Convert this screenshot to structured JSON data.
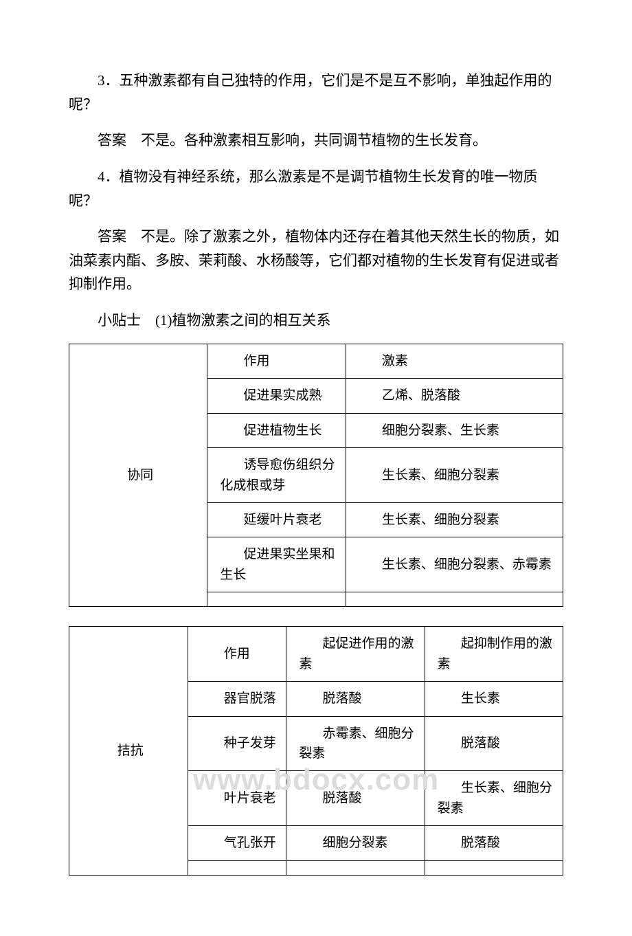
{
  "watermark": "www.bdocx.com",
  "q3": {
    "question": "3．五种激素都有自己独特的作用，它们是不是互不影响，单独起作用的呢？",
    "answer": "答案　不是。各种激素相互影响，共同调节植物的生长发育。"
  },
  "q4": {
    "question": "4．植物没有神经系统，那么激素是不是调节植物生长发育的唯一物质呢？",
    "answer": "答案　不是。除了激素之外，植物体内还存在着其他天然生长的物质，如油菜素内酯、多胺、茉莉酸、水杨酸等，它们都对植物的生长发育有促进或者抑制作用。"
  },
  "tip": "小贴士　(1)植物激素之间的相互关系",
  "table1": {
    "category": "协同",
    "head_action": "作用",
    "head_hormone": "激素",
    "rows": [
      {
        "action": "促进果实成熟",
        "hormone": "乙烯、脱落酸"
      },
      {
        "action": "促进植物生长",
        "hormone": "细胞分裂素、生长素"
      },
      {
        "action": "诱导愈伤组织分化成根或芽",
        "hormone": "生长素、细胞分裂素"
      },
      {
        "action": "延缓叶片衰老",
        "hormone": "生长素、细胞分裂素"
      },
      {
        "action": "促进果实坐果和生长",
        "hormone": "生长素、细胞分裂素、赤霉素"
      }
    ]
  },
  "table2": {
    "category": "拮抗",
    "head_action": "作用",
    "head_promote": "起促进作用的激素",
    "head_inhibit": "起抑制作用的激素",
    "rows": [
      {
        "action": "器官脱落",
        "promote": "脱落酸",
        "inhibit": "生长素"
      },
      {
        "action": "种子发芽",
        "promote": "赤霉素、细胞分裂素",
        "inhibit": "脱落酸"
      },
      {
        "action": "叶片衰老",
        "promote": "脱落酸",
        "inhibit": "生长素、细胞分裂素"
      },
      {
        "action": "气孔张开",
        "promote": "细胞分裂素",
        "inhibit": "脱落酸"
      }
    ]
  },
  "styles": {
    "body_font_size": 21,
    "table_font_size": 19,
    "text_color": "#000000",
    "border_color": "#000000",
    "background_color": "#ffffff",
    "watermark_color": "#dcdcdc"
  }
}
